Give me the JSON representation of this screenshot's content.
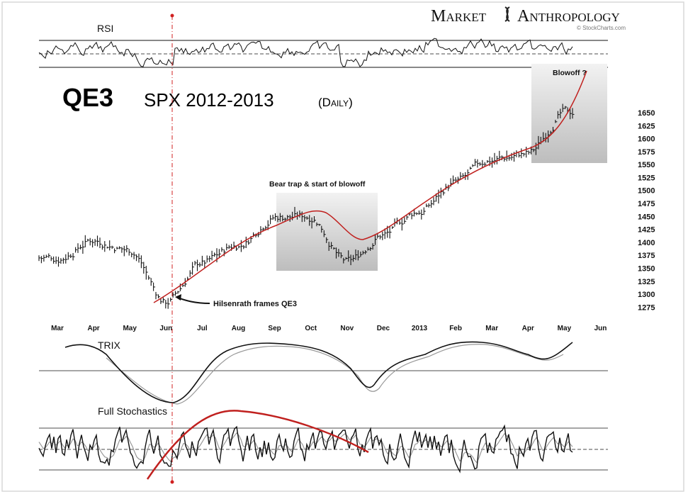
{
  "header": {
    "brand_word1": "Market",
    "brand_word2": "Anthropology",
    "credit": "© StockCharts.com"
  },
  "chart_data": {
    "type": "line",
    "title": "QE3",
    "subtitle": "SPX 2012-2013",
    "subtitle_note": "(Daily)",
    "y_ticks": [
      1275,
      1300,
      1325,
      1350,
      1375,
      1400,
      1425,
      1450,
      1475,
      1500,
      1525,
      1550,
      1575,
      1600,
      1625,
      1650
    ],
    "y_range": [
      1270,
      1665
    ],
    "x_ticks": [
      "Mar",
      "Apr",
      "May",
      "Jun",
      "Jul",
      "Aug",
      "Sep",
      "Oct",
      "Nov",
      "Dec",
      "2013",
      "Feb",
      "Mar",
      "Apr",
      "May",
      "Jun"
    ],
    "price_path": [
      [
        "Mar",
        1370
      ],
      [
        "Apr",
        1405
      ],
      [
        "May",
        1385
      ],
      [
        "Jun",
        1285
      ],
      [
        "Jul",
        1360
      ],
      [
        "Aug",
        1395
      ],
      [
        "Sep",
        1450
      ],
      [
        "Oct",
        1450
      ],
      [
        "Nov",
        1360
      ],
      [
        "Dec",
        1415
      ],
      [
        "2013",
        1460
      ],
      [
        "Feb",
        1515
      ],
      [
        "Mar",
        1560
      ],
      [
        "Apr",
        1570
      ],
      [
        "May",
        1650
      ]
    ],
    "annotations": {
      "qe3": "Hilsenrath frames QE3",
      "bear_trap": "Bear trap & start of  blowoff",
      "blowoff": "Blowoff ?"
    },
    "panels": {
      "rsi": "RSI",
      "trix": "TRIX",
      "stochastics": "Full Stochastics"
    },
    "grid": false,
    "colors": {
      "price": "#111111",
      "trend": "#c0201e",
      "highlight_box": "#c8c8c8",
      "signal": "#999999",
      "marker": "#d02020"
    }
  }
}
